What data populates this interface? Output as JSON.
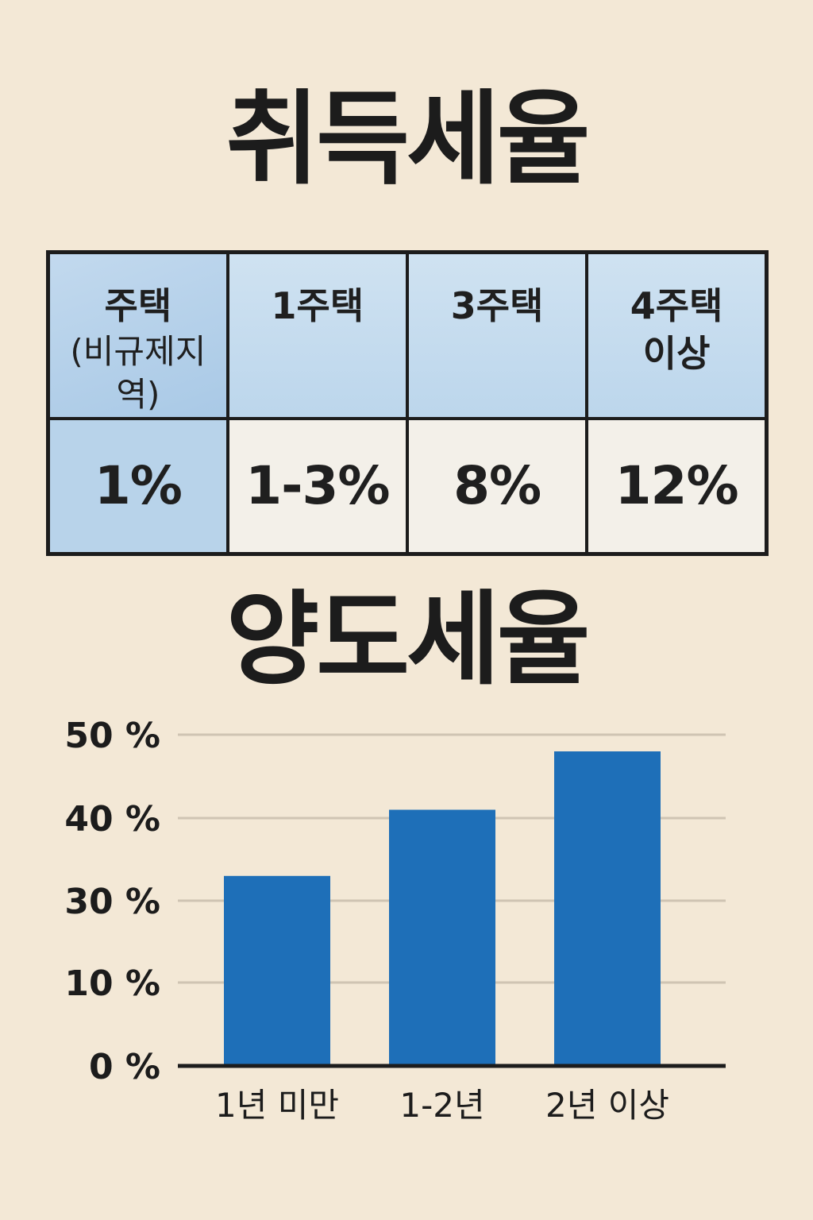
{
  "acquisition": {
    "title": "취득세율",
    "table": {
      "headers": [
        {
          "line1": "주택",
          "line2": "(비규제지역)"
        },
        {
          "line1": "1주택",
          "line2": ""
        },
        {
          "line1": "3주택",
          "line2": ""
        },
        {
          "line1": "4주택",
          "line2": "이상"
        }
      ],
      "values": [
        "1%",
        "1-3%",
        "8%",
        "12%"
      ]
    }
  },
  "capital_gains": {
    "title": "양도세율"
  },
  "colors": {
    "background": "#f3e8d6",
    "bar": "#1e6fb8",
    "header_cell": "#c6dcef",
    "highlight_cell": "#b8d3ea"
  },
  "chart_data": {
    "type": "bar",
    "categories": [
      "1년 미만",
      "1-2년",
      "2년 이상"
    ],
    "values": [
      33,
      41,
      48
    ],
    "yticks": [
      {
        "value": 0,
        "label": "0 %"
      },
      {
        "value": 10,
        "label": "10 %"
      },
      {
        "value": 30,
        "label": "30 %"
      },
      {
        "value": 40,
        "label": "40 %"
      },
      {
        "value": 50,
        "label": "50 %"
      }
    ],
    "title": "",
    "xlabel": "",
    "ylabel": "",
    "grid": true,
    "legend": "none"
  }
}
